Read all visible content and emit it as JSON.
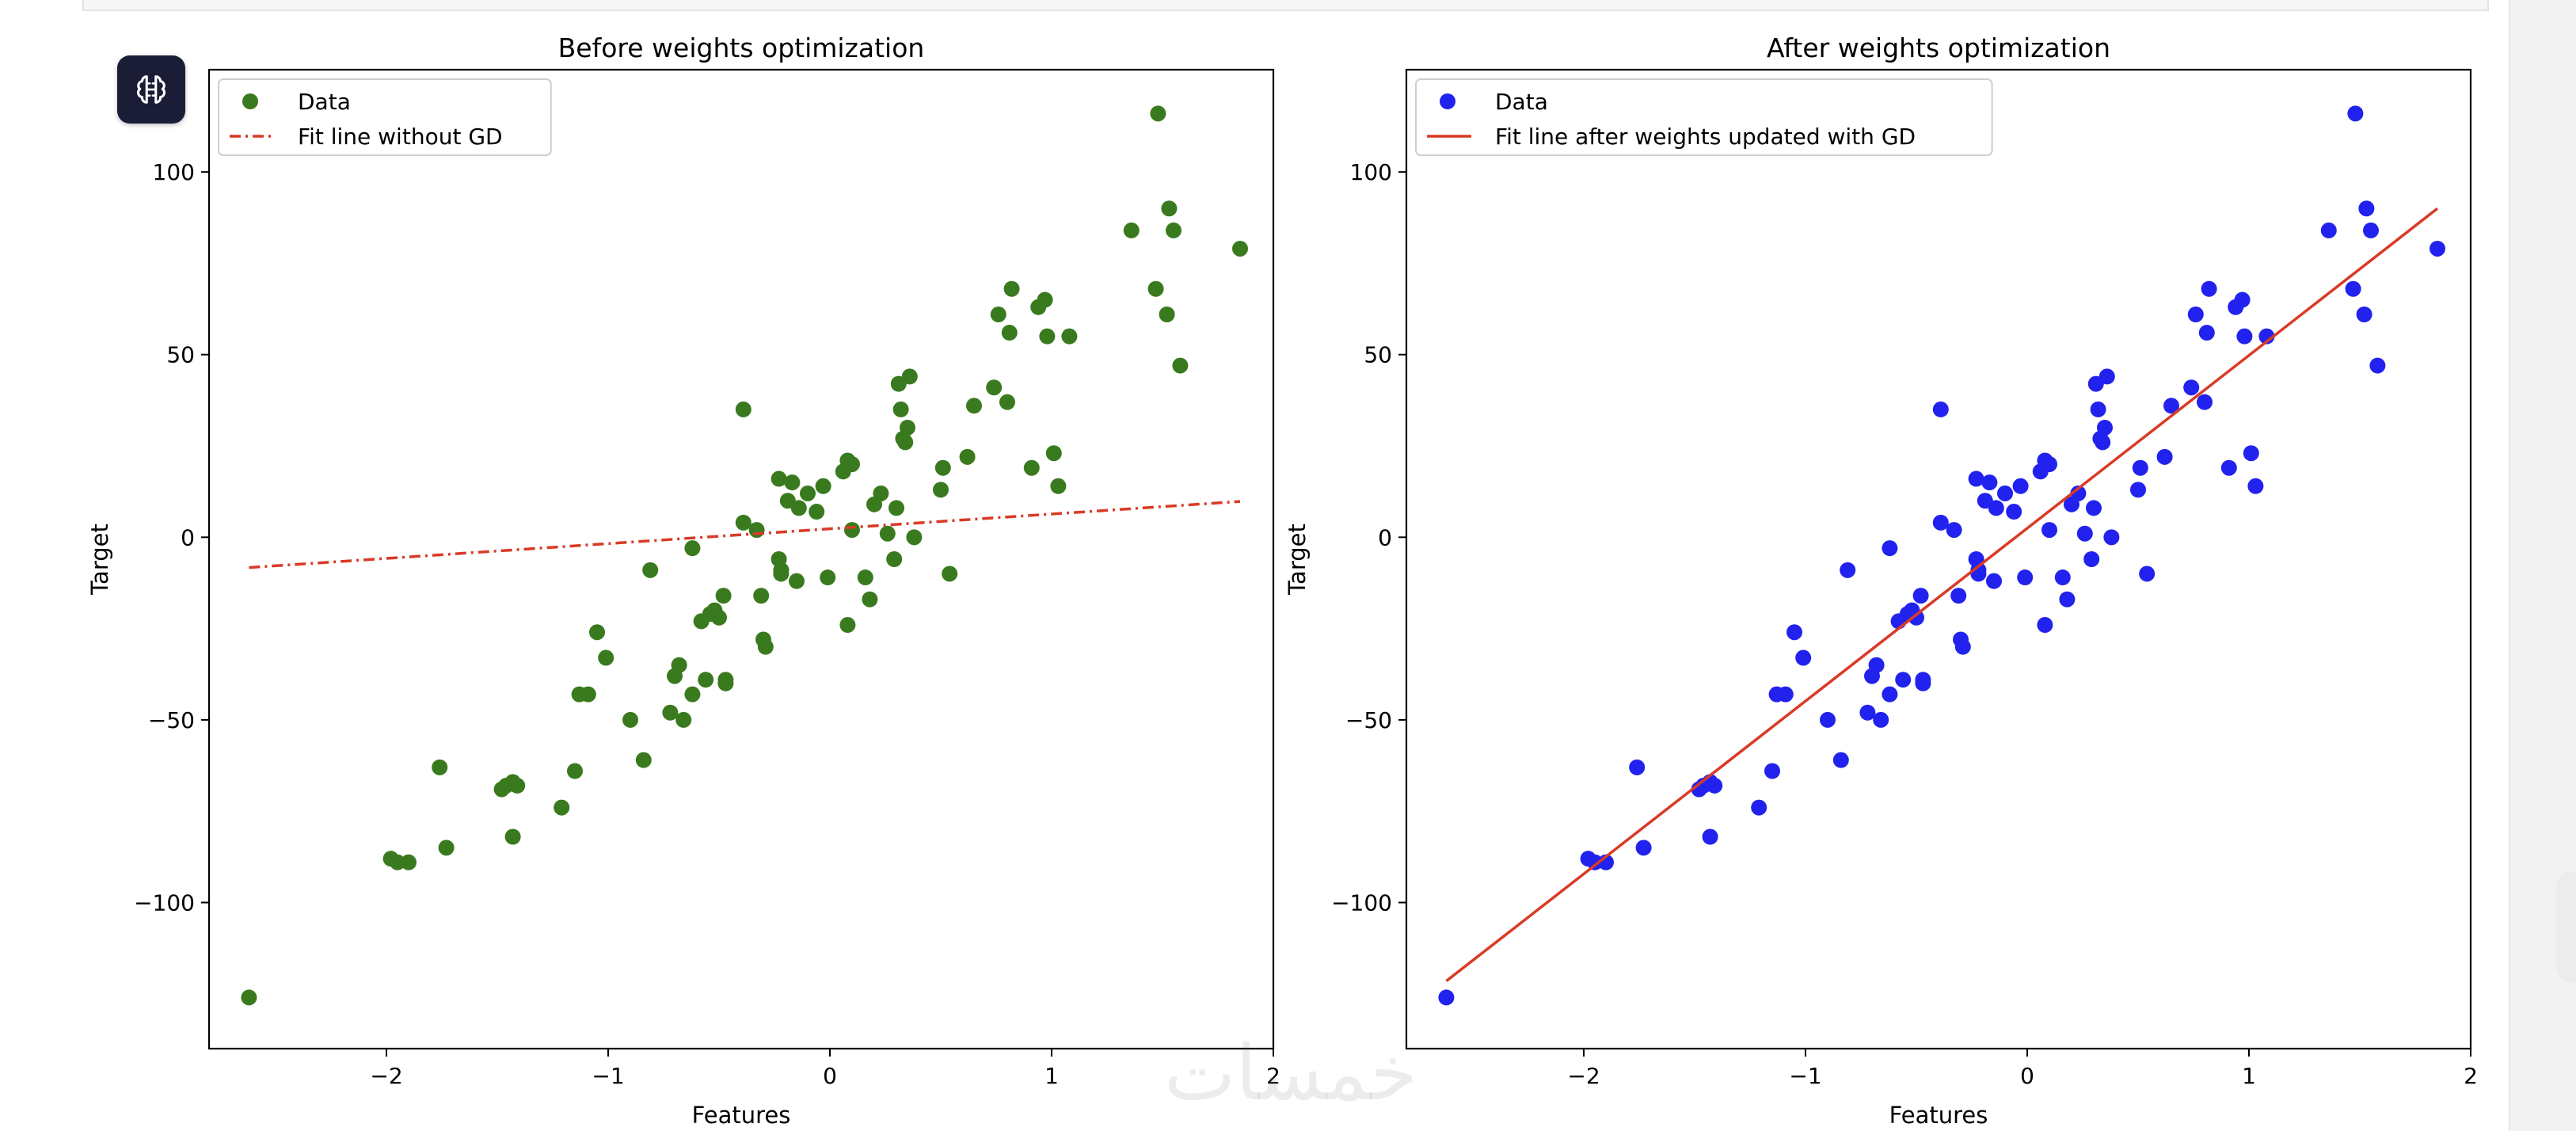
{
  "watermark": "خمسات",
  "icons": {
    "assistant": "brain-icon"
  },
  "colors": {
    "left_points": "#3a7a1e",
    "right_points": "#2222ee",
    "fit_line": "#d93a26"
  },
  "chart_data": [
    {
      "type": "scatter",
      "title": "Before weights optimization",
      "xlabel": "Features",
      "ylabel": "Target",
      "xlim": [
        -2.8,
        2.0
      ],
      "ylim": [
        -140,
        128
      ],
      "xticks": [
        -2,
        -1,
        0,
        1,
        2
      ],
      "yticks": [
        -100,
        -50,
        0,
        50,
        100
      ],
      "grid": false,
      "legend_position": "top-left",
      "series": [
        {
          "name": "Data",
          "kind": "scatter",
          "color": "#3a7a1e",
          "x": [
            -2.62,
            -1.98,
            -1.95,
            -1.9,
            -1.73,
            -1.76,
            -1.48,
            -1.46,
            -1.43,
            -1.41,
            -1.43,
            -1.21,
            -1.15,
            -1.13,
            -1.09,
            -1.05,
            -1.01,
            -0.9,
            -0.84,
            -0.81,
            -0.72,
            -0.7,
            -0.68,
            -0.66,
            -0.62,
            -0.62,
            -0.58,
            -0.56,
            -0.54,
            -0.52,
            -0.5,
            -0.48,
            -0.47,
            -0.47,
            -0.39,
            -0.39,
            -0.33,
            -0.31,
            -0.3,
            -0.29,
            -0.23,
            -0.23,
            -0.22,
            -0.22,
            -0.19,
            -0.17,
            -0.15,
            -0.14,
            -0.1,
            -0.06,
            -0.03,
            -0.01,
            0.06,
            0.08,
            0.08,
            0.1,
            0.1,
            0.16,
            0.18,
            0.2,
            0.23,
            0.26,
            0.29,
            0.3,
            0.31,
            0.32,
            0.33,
            0.34,
            0.35,
            0.36,
            0.38,
            0.5,
            0.51,
            0.54,
            0.62,
            0.65,
            0.74,
            0.76,
            0.8,
            0.81,
            0.82,
            0.91,
            0.94,
            0.97,
            0.98,
            1.01,
            1.03,
            1.08,
            1.36,
            1.47,
            1.48,
            1.52,
            1.53,
            1.55,
            1.58,
            1.85
          ],
          "y": [
            -126,
            -88,
            -89,
            -89,
            -85,
            -63,
            -69,
            -68,
            -82,
            -68,
            -67,
            -74,
            -64,
            -43,
            -43,
            -26,
            -33,
            -50,
            -61,
            -9,
            -48,
            -38,
            -35,
            -50,
            -3,
            -43,
            -23,
            -39,
            -21,
            -20,
            -22,
            -16,
            -40,
            -39,
            4,
            35,
            2,
            -16,
            -28,
            -30,
            16,
            -6,
            -9,
            -10,
            10,
            15,
            -12,
            8,
            12,
            7,
            14,
            -11,
            18,
            21,
            -24,
            20,
            2,
            -11,
            -17,
            9,
            12,
            1,
            -6,
            8,
            42,
            35,
            27,
            26,
            30,
            44,
            0,
            13,
            19,
            -10,
            22,
            36,
            41,
            61,
            37,
            56,
            68,
            19,
            63,
            65,
            55,
            23,
            14,
            55,
            84,
            68,
            116,
            61,
            90,
            84,
            47,
            79
          ]
        },
        {
          "name": "Fit line without GD",
          "kind": "line",
          "style": "dashdot",
          "color": "#d93a26",
          "x": [
            -2.62,
            1.85
          ],
          "y": [
            -8.3,
            9.8
          ]
        }
      ]
    },
    {
      "type": "scatter",
      "title": "After weights optimization",
      "xlabel": "Features",
      "ylabel": "Target",
      "xlim": [
        -2.8,
        2.0
      ],
      "ylim": [
        -140,
        128
      ],
      "xticks": [
        -2,
        -1,
        0,
        1,
        2
      ],
      "yticks": [
        -100,
        -50,
        0,
        50,
        100
      ],
      "grid": false,
      "legend_position": "top-left",
      "series": [
        {
          "name": "Data",
          "kind": "scatter",
          "color": "#2222ee",
          "x": [
            -2.62,
            -1.98,
            -1.95,
            -1.9,
            -1.73,
            -1.76,
            -1.48,
            -1.46,
            -1.43,
            -1.41,
            -1.43,
            -1.21,
            -1.15,
            -1.13,
            -1.09,
            -1.05,
            -1.01,
            -0.9,
            -0.84,
            -0.81,
            -0.72,
            -0.7,
            -0.68,
            -0.66,
            -0.62,
            -0.62,
            -0.58,
            -0.56,
            -0.54,
            -0.52,
            -0.5,
            -0.48,
            -0.47,
            -0.47,
            -0.39,
            -0.39,
            -0.33,
            -0.31,
            -0.3,
            -0.29,
            -0.23,
            -0.23,
            -0.22,
            -0.22,
            -0.19,
            -0.17,
            -0.15,
            -0.14,
            -0.1,
            -0.06,
            -0.03,
            -0.01,
            0.06,
            0.08,
            0.08,
            0.1,
            0.1,
            0.16,
            0.18,
            0.2,
            0.23,
            0.26,
            0.29,
            0.3,
            0.31,
            0.32,
            0.33,
            0.34,
            0.35,
            0.36,
            0.38,
            0.5,
            0.51,
            0.54,
            0.62,
            0.65,
            0.74,
            0.76,
            0.8,
            0.81,
            0.82,
            0.91,
            0.94,
            0.97,
            0.98,
            1.01,
            1.03,
            1.08,
            1.36,
            1.47,
            1.48,
            1.52,
            1.53,
            1.55,
            1.58,
            1.85
          ],
          "y": [
            -126,
            -88,
            -89,
            -89,
            -85,
            -63,
            -69,
            -68,
            -82,
            -68,
            -67,
            -74,
            -64,
            -43,
            -43,
            -26,
            -33,
            -50,
            -61,
            -9,
            -48,
            -38,
            -35,
            -50,
            -3,
            -43,
            -23,
            -39,
            -21,
            -20,
            -22,
            -16,
            -40,
            -39,
            4,
            35,
            2,
            -16,
            -28,
            -30,
            16,
            -6,
            -9,
            -10,
            10,
            15,
            -12,
            8,
            12,
            7,
            14,
            -11,
            18,
            21,
            -24,
            20,
            2,
            -11,
            -17,
            9,
            12,
            1,
            -6,
            8,
            42,
            35,
            27,
            26,
            30,
            44,
            0,
            13,
            19,
            -10,
            22,
            36,
            41,
            61,
            37,
            56,
            68,
            19,
            63,
            65,
            55,
            23,
            14,
            55,
            84,
            68,
            116,
            61,
            90,
            84,
            47,
            79
          ]
        },
        {
          "name": "Fit line after weights updated with GD",
          "kind": "line",
          "style": "solid",
          "color": "#d93a26",
          "x": [
            -2.62,
            1.85
          ],
          "y": [
            -121.5,
            90.0
          ]
        }
      ]
    }
  ]
}
